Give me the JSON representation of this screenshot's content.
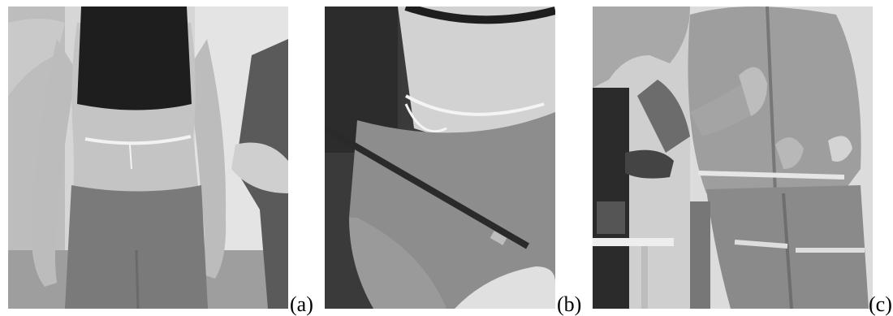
{
  "panels": [
    {
      "id": "a",
      "label": "(a)"
    },
    {
      "id": "b",
      "label": "(b)"
    },
    {
      "id": "c",
      "label": "(c)"
    }
  ]
}
